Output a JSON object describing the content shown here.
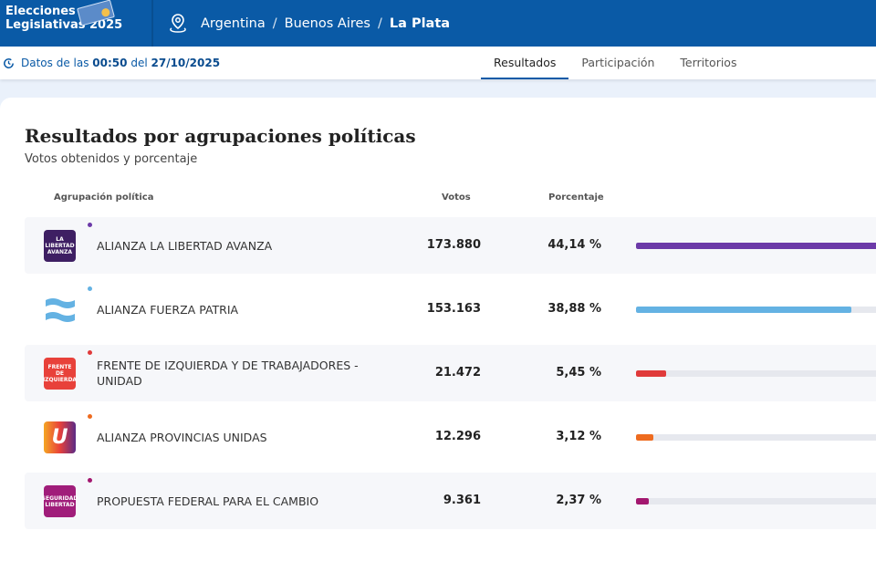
{
  "header": {
    "brand_line1": "Elecciones",
    "brand_line2": "Legislativas 2025",
    "breadcrumb": [
      "Argentina",
      "Buenos Aires",
      "La Plata"
    ]
  },
  "subheader": {
    "prefix": "Datos de las",
    "time": "00:50",
    "mid": "del",
    "date": "27/10/2025",
    "tabs": [
      "Resultados",
      "Participación",
      "Territorios"
    ],
    "active_tab": "Resultados"
  },
  "main": {
    "title": "Resultados por agrupaciones políticas",
    "subtitle": "Votos obtenidos y porcentaje",
    "columns": {
      "party": "Agrupación política",
      "votes": "Votos",
      "percent": "Porcentaje"
    },
    "rows": [
      {
        "name": "ALIANZA LA LIBERTAD AVANZA",
        "votes": "173.880",
        "percent": "44,14 %",
        "value": 44.14,
        "color": "#6c3aa8",
        "logo_text": "LA LIBERTAD AVANZA",
        "logo_bg": "#3e1f63"
      },
      {
        "name": "ALIANZA FUERZA PATRIA",
        "votes": "153.163",
        "percent": "38,88 %",
        "value": 38.88,
        "color": "#64b2e3",
        "logo_text": "",
        "logo_bg": "#ffffff"
      },
      {
        "name": "FRENTE DE IZQUIERDA Y DE TRABAJADORES - UNIDAD",
        "votes": "21.472",
        "percent": "5,45 %",
        "value": 5.45,
        "color": "#e03a3a",
        "logo_text": "FRENTE DE IZQUIERDA",
        "logo_bg": "#e8413a"
      },
      {
        "name": "ALIANZA PROVINCIAS UNIDAS",
        "votes": "12.296",
        "percent": "3,12 %",
        "value": 3.12,
        "color": "#ee6b1f",
        "logo_text": "U",
        "logo_bg": "#e8602a"
      },
      {
        "name": "PROPUESTA FEDERAL PARA EL CAMBIO",
        "votes": "9.361",
        "percent": "2,37 %",
        "value": 2.37,
        "color": "#a3176f",
        "logo_text": "SEGURIDAD LIBERTAD",
        "logo_bg": "#a01d7a"
      }
    ]
  },
  "colors": {
    "primary": "#0a5aa6"
  }
}
